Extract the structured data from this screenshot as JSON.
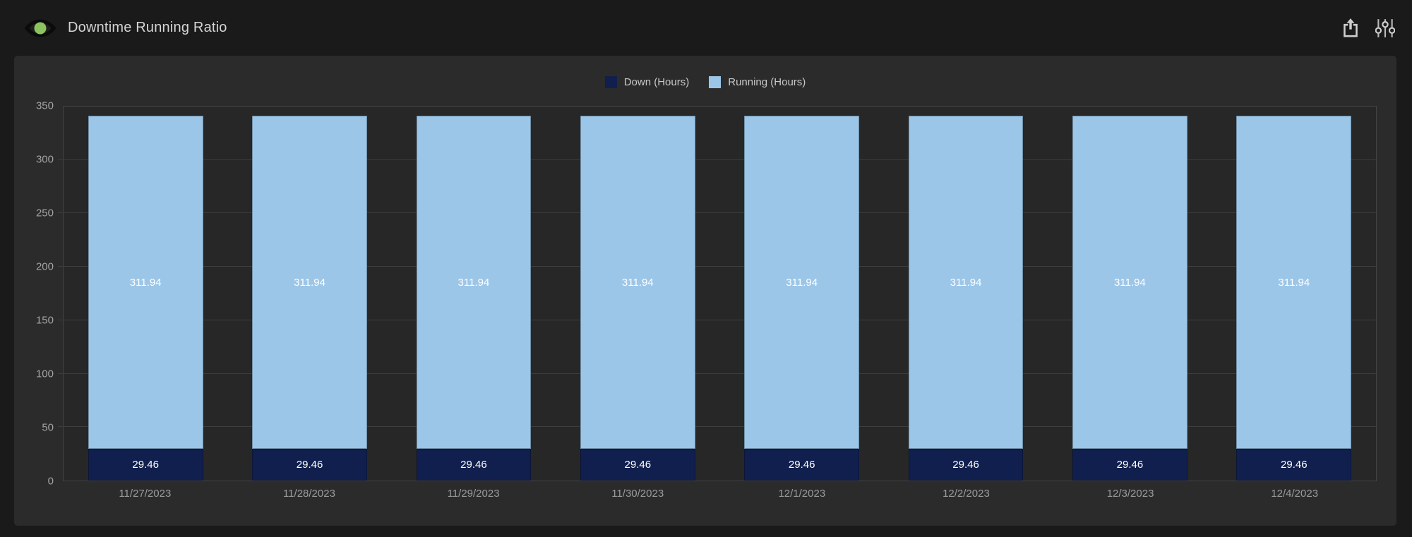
{
  "header": {
    "title": "Downtime Running Ratio",
    "icons": {
      "status": "eye-icon",
      "export": "share-up-arrow-icon",
      "filters": "sliders-icon"
    }
  },
  "colors": {
    "page_bg": "#1A1A1A",
    "panel_bg": "#2B2B2B",
    "accent_green": "#8BC45E",
    "down": "#101F4D",
    "running": "#9CC6E8"
  },
  "chart_data": {
    "type": "bar",
    "stacked": true,
    "title": "Downtime Running Ratio",
    "categories": [
      "11/27/2023",
      "11/28/2023",
      "11/29/2023",
      "11/30/2023",
      "12/1/2023",
      "12/2/2023",
      "12/3/2023",
      "12/4/2023"
    ],
    "series": [
      {
        "name": "Down (Hours)",
        "color": "#101F4D",
        "values": [
          29.46,
          29.46,
          29.46,
          29.46,
          29.46,
          29.46,
          29.46,
          29.46
        ]
      },
      {
        "name": "Running (Hours)",
        "color": "#9CC6E8",
        "values": [
          311.94,
          311.94,
          311.94,
          311.94,
          311.94,
          311.94,
          311.94,
          311.94
        ]
      }
    ],
    "ylim": [
      0,
      350
    ],
    "y_ticks": [
      0,
      50,
      100,
      150,
      200,
      250,
      300,
      350
    ],
    "grid": true,
    "legend_position": "top-center",
    "bar_value_labels": true,
    "xlabel": "",
    "ylabel": ""
  }
}
